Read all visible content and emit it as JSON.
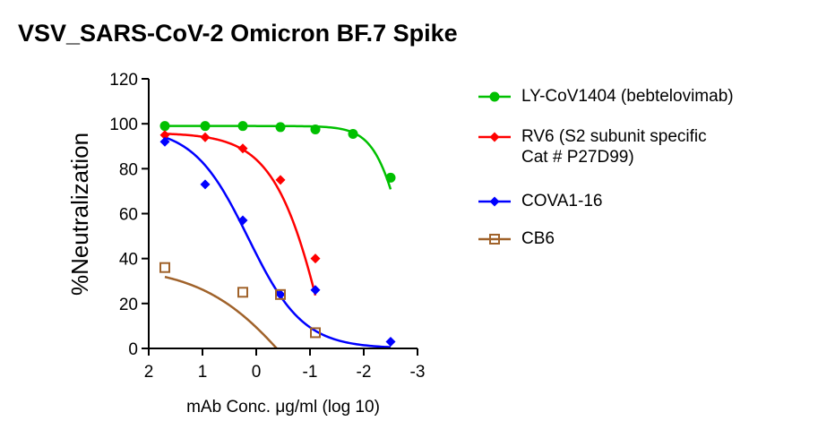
{
  "chart_data": {
    "type": "scatter",
    "title": "VSV_SARS-CoV-2 Omicron BF.7 Spike",
    "xlabel": "mAb Conc. μg/ml (log 10)",
    "ylabel": "%Neutralization",
    "xlim": [
      2,
      -3
    ],
    "ylim": [
      0,
      120
    ],
    "x_ticks": [
      2,
      1,
      0,
      -1,
      -2,
      -3
    ],
    "x_tick_labels": [
      "2",
      "1",
      "0",
      "-1",
      "-2",
      "-3"
    ],
    "y_ticks": [
      0,
      20,
      40,
      60,
      80,
      100,
      120
    ],
    "y_tick_labels": [
      "0",
      "20",
      "40",
      "60",
      "80",
      "100",
      "120"
    ],
    "fit_curves": true,
    "grid": false,
    "legend_position": "right",
    "series": [
      {
        "name": "LY-CoV1404 (bebtelovimab)",
        "color": "#00c000",
        "marker": "circle",
        "x": [
          1.7,
          0.95,
          0.25,
          -0.45,
          -1.1,
          -1.8,
          -2.5
        ],
        "y": [
          99,
          99,
          99,
          98.5,
          97.5,
          95.5,
          76
        ],
        "curve": {
          "bottom": 0,
          "top": 99,
          "logIC50": -2.75,
          "hill": 1.6
        }
      },
      {
        "name": "RV6 (S2 subunit specific\nCat # P27D99)",
        "color": "#ff0000",
        "marker": "diamond",
        "x": [
          1.7,
          0.95,
          0.25,
          -0.45,
          -1.1
        ],
        "y": [
          95,
          94,
          89,
          75,
          40
        ],
        "curve": {
          "bottom": -120,
          "top": 96,
          "logIC50": -1.45,
          "hill": 0.85
        }
      },
      {
        "name": "COVA1-16",
        "color": "#0000ff",
        "marker": "diamond",
        "x": [
          1.7,
          0.95,
          0.25,
          -0.45,
          -1.1,
          -2.5
        ],
        "y": [
          92,
          73,
          57,
          24,
          26,
          3
        ],
        "curve": {
          "bottom": 0,
          "top": 98.5,
          "logIC50": 0.15,
          "hill": 0.85
        }
      },
      {
        "name": "CB6",
        "color": "#a0622a",
        "marker": "square-open",
        "x": [
          1.7,
          0.25,
          -0.45,
          -1.1
        ],
        "y": [
          36,
          25,
          24,
          7
        ],
        "curve": {
          "bottom": -60,
          "top": 37,
          "logIC50": -0.8,
          "hill": 0.5
        }
      }
    ]
  }
}
